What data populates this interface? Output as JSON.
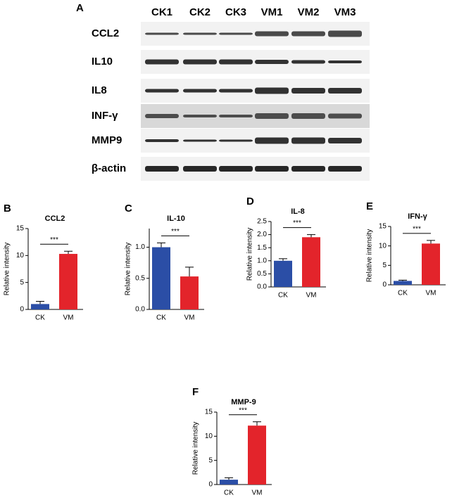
{
  "blot": {
    "panel": "A",
    "lanes": [
      "CK1",
      "CK2",
      "CK3",
      "VM1",
      "VM2",
      "VM3"
    ],
    "rows": [
      "CCL2",
      "IL10",
      "IL8",
      "INF-γ",
      "MMP9",
      "β-actin"
    ]
  },
  "chart_data": [
    {
      "type": "bar",
      "panel": "B",
      "title": "CCL2",
      "ylabel": "Relative intensity",
      "categories": [
        "CK",
        "VM"
      ],
      "values": [
        1.0,
        10.3
      ],
      "errors": [
        0.5,
        0.5
      ],
      "colors": [
        "#2b4ea6",
        "#e3242b"
      ],
      "ylim": [
        0,
        15
      ],
      "yticks": [
        0,
        5,
        10,
        15
      ],
      "annotation": "***"
    },
    {
      "type": "bar",
      "panel": "C",
      "title": "IL-10",
      "ylabel": "Relative intensity",
      "categories": [
        "CK",
        "VM"
      ],
      "values": [
        1.0,
        0.53
      ],
      "errors": [
        0.07,
        0.15
      ],
      "colors": [
        "#2b4ea6",
        "#e3242b"
      ],
      "ylim": [
        0,
        1.3
      ],
      "yticks": [
        {
          "value": 0,
          "label": "0.0"
        },
        {
          "value": 0.5,
          "label": "0.5"
        },
        {
          "value": 1,
          "label": "1.0"
        }
      ],
      "annotation": "***"
    },
    {
      "type": "bar",
      "panel": "D",
      "title": "IL-8",
      "ylabel": "Relative intensity",
      "categories": [
        "CK",
        "VM"
      ],
      "values": [
        1.0,
        1.9
      ],
      "errors": [
        0.08,
        0.1
      ],
      "colors": [
        "#2b4ea6",
        "#e3242b"
      ],
      "ylim": [
        0,
        2.5
      ],
      "yticks": [
        {
          "value": 0,
          "label": "0.0"
        },
        {
          "value": 0.5,
          "label": "0.5"
        },
        {
          "value": 1,
          "label": "1.0"
        },
        {
          "value": 1.5,
          "label": "1.5"
        },
        {
          "value": 2,
          "label": "2.0"
        },
        {
          "value": 2.5,
          "label": "2.5"
        }
      ],
      "annotation": "***"
    },
    {
      "type": "bar",
      "panel": "E",
      "title": "IFN-γ",
      "ylabel": "Relative intensity",
      "categories": [
        "CK",
        "VM"
      ],
      "values": [
        1.0,
        10.6
      ],
      "errors": [
        0.2,
        0.8
      ],
      "colors": [
        "#2b4ea6",
        "#e3242b"
      ],
      "ylim": [
        0,
        15
      ],
      "yticks": [
        0,
        5,
        10,
        15
      ],
      "annotation": "***"
    },
    {
      "type": "bar",
      "panel": "F",
      "title": "MMP-9",
      "ylabel": "Relative intensity",
      "categories": [
        "CK",
        "VM"
      ],
      "values": [
        1.0,
        12.2
      ],
      "errors": [
        0.4,
        0.8
      ],
      "colors": [
        "#2b4ea6",
        "#e3242b"
      ],
      "ylim": [
        0,
        15
      ],
      "yticks": [
        0,
        5,
        10,
        15
      ],
      "annotation": "***"
    }
  ]
}
